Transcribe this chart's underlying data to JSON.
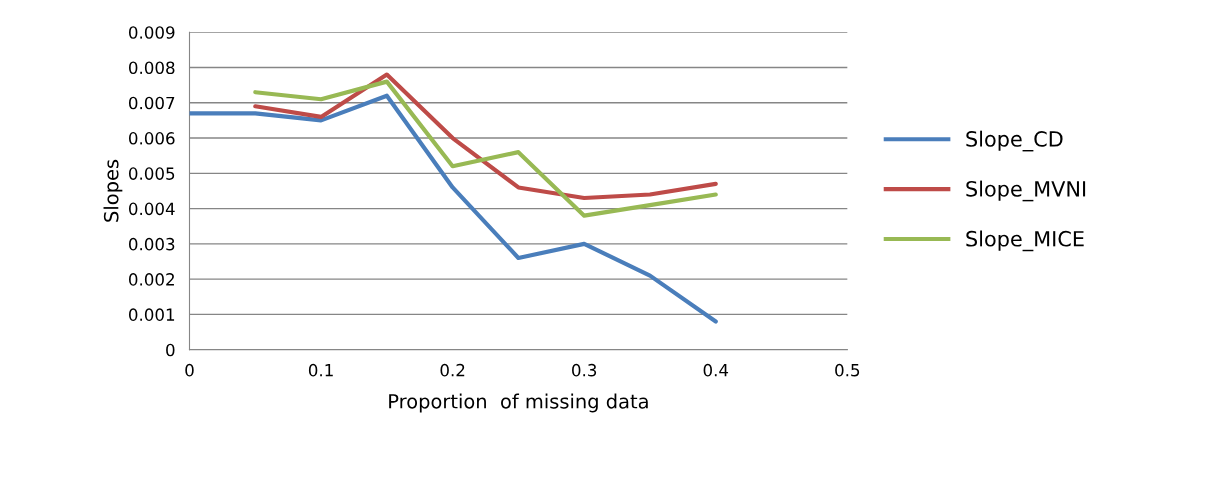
{
  "chart_data": {
    "type": "line",
    "xlabel": "Proportion  of missing data",
    "ylabel": "Slopes",
    "x": [
      0,
      0.05,
      0.1,
      0.15,
      0.2,
      0.25,
      0.3,
      0.35,
      0.4
    ],
    "series": [
      {
        "name": "Slope_CD",
        "color": "#4a7ebb",
        "values": [
          0.0067,
          0.0067,
          0.0065,
          0.0072,
          0.0046,
          0.0026,
          0.003,
          0.0021,
          0.0008
        ]
      },
      {
        "name": "Slope_MVNI",
        "color": "#be4b48",
        "values": [
          null,
          0.0069,
          0.0066,
          0.0078,
          0.006,
          0.0046,
          0.0043,
          0.0044,
          0.0047
        ]
      },
      {
        "name": "Slope_MICE",
        "color": "#98b954",
        "values": [
          null,
          0.0073,
          0.0071,
          0.0076,
          0.0052,
          0.0056,
          0.0038,
          0.0041,
          0.0044
        ]
      }
    ],
    "xlim": [
      0,
      0.5
    ],
    "ylim": [
      0,
      0.009
    ],
    "xticks": [
      0,
      0.1,
      0.2,
      0.3,
      0.4,
      0.5
    ],
    "yticks": [
      0,
      0.001,
      0.002,
      0.003,
      0.004,
      0.005,
      0.006,
      0.007,
      0.008,
      0.009
    ],
    "grid": "y",
    "legend": "right",
    "marker": "none",
    "line_style": "solid"
  }
}
